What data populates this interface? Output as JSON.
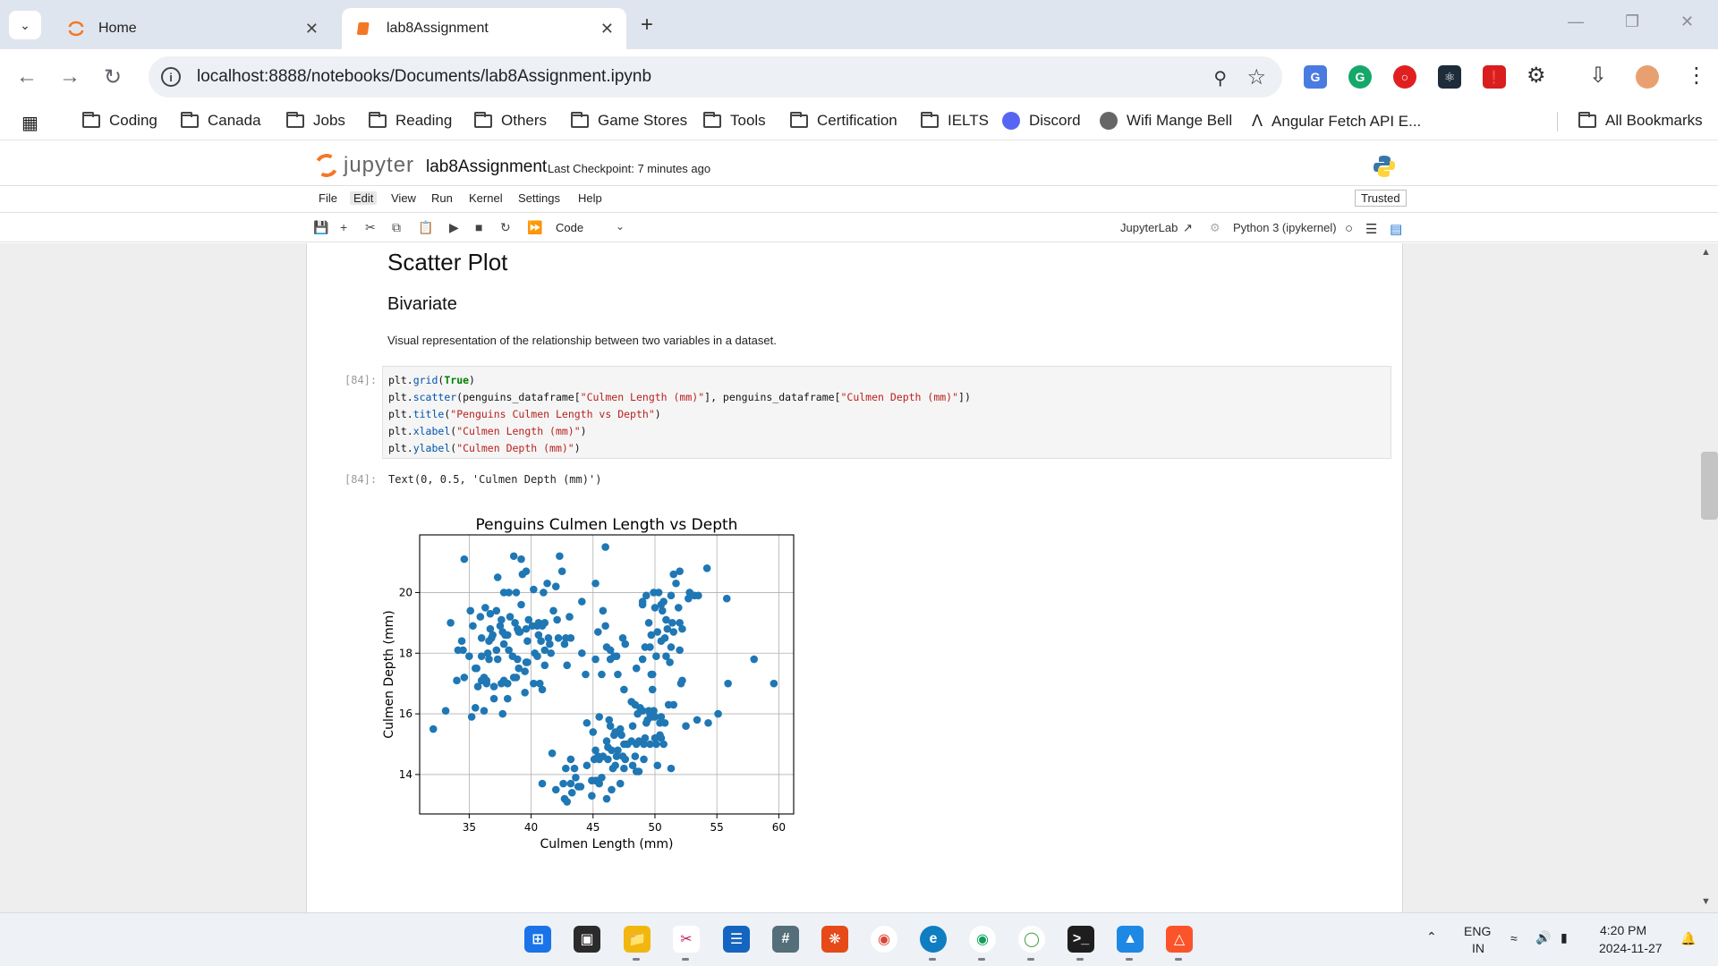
{
  "browser": {
    "tabs": [
      {
        "title": "Home",
        "active": false
      },
      {
        "title": "lab8Assignment",
        "active": true
      }
    ],
    "url": "localhost:8888/notebooks/Documents/lab8Assignment.ipynb",
    "bookmarks": [
      "Coding",
      "Canada",
      "Jobs",
      "Reading",
      "Others",
      "Game Stores",
      "Tools",
      "Certification",
      "IELTS",
      "Discord",
      "Wifi Mange Bell",
      "Angular Fetch API E..."
    ],
    "all_bookmarks": "All Bookmarks",
    "colors": {
      "tab_strip": "#dfe5ee",
      "omnibox": "#edf0f4"
    }
  },
  "jupyter": {
    "logo_text": "jupyter",
    "notebook_name": "lab8Assignment",
    "checkpoint": "Last Checkpoint: 7 minutes ago",
    "menu": [
      "File",
      "Edit",
      "View",
      "Run",
      "Kernel",
      "Settings",
      "Help"
    ],
    "trusted": "Trusted",
    "cell_type": "Code",
    "jupyterlab_link": "JupyterLab",
    "kernel": "Python 3 (ipykernel)",
    "accent": "#f37726"
  },
  "notebook": {
    "heading": "Scatter Plot",
    "subheading": "Bivariate",
    "paragraph": "Visual representation of the relationship between two variables in a dataset.",
    "input_prompt": "[84]:",
    "output_prompt": "[84]:",
    "output_text": "Text(0, 0.5, 'Culmen Depth (mm)')",
    "code": {
      "l1_a": "plt.",
      "l1_fn": "grid",
      "l1_b": "(",
      "l1_kw": "True",
      "l1_c": ")",
      "l2_a": "plt.",
      "l2_fn": "scatter",
      "l2_b": "(penguins_dataframe[",
      "l2_s1": "\"Culmen Length (mm)\"",
      "l2_c": "], penguins_dataframe[",
      "l2_s2": "\"Culmen Depth (mm)\"",
      "l2_d": "])",
      "l3_a": "plt.",
      "l3_fn": "title",
      "l3_b": "(",
      "l3_s": "\"Penguins Culmen Length vs Depth\"",
      "l3_c": ")",
      "l4_a": "plt.",
      "l4_fn": "xlabel",
      "l4_b": "(",
      "l4_s": "\"Culmen Length (mm)\"",
      "l4_c": ")",
      "l5_a": "plt.",
      "l5_fn": "ylabel",
      "l5_b": "(",
      "l5_s": "\"Culmen Depth (mm)\"",
      "l5_c": ")"
    }
  },
  "chart_data": {
    "type": "scatter",
    "title": "Penguins Culmen Length vs Depth",
    "xlabel": "Culmen Length (mm)",
    "ylabel": "Culmen Depth (mm)",
    "xlim": [
      31,
      61.2
    ],
    "ylim": [
      12.7,
      21.9
    ],
    "xticks": [
      35,
      40,
      45,
      50,
      55,
      60
    ],
    "yticks": [
      14,
      16,
      18,
      20
    ],
    "grid": true,
    "color": "#1f77b4",
    "series": [
      {
        "points": [
          [
            32.1,
            15.5
          ],
          [
            33.1,
            16.1
          ],
          [
            33.5,
            19.0
          ],
          [
            34.0,
            17.1
          ],
          [
            34.1,
            18.1
          ],
          [
            34.4,
            18.4
          ],
          [
            34.5,
            18.1
          ],
          [
            34.6,
            21.1
          ],
          [
            34.6,
            17.2
          ],
          [
            35.0,
            17.9
          ],
          [
            35.1,
            19.4
          ],
          [
            35.2,
            15.9
          ],
          [
            35.3,
            18.9
          ],
          [
            35.5,
            16.2
          ],
          [
            35.5,
            17.5
          ],
          [
            35.6,
            17.5
          ],
          [
            35.7,
            16.9
          ],
          [
            35.9,
            19.2
          ],
          [
            36.0,
            17.9
          ],
          [
            36.0,
            18.5
          ],
          [
            36.0,
            17.1
          ],
          [
            36.2,
            16.1
          ],
          [
            36.2,
            17.2
          ],
          [
            36.3,
            19.5
          ],
          [
            36.4,
            17.0
          ],
          [
            36.4,
            17.1
          ],
          [
            36.5,
            18.0
          ],
          [
            36.6,
            17.8
          ],
          [
            36.6,
            18.4
          ],
          [
            36.7,
            18.8
          ],
          [
            36.7,
            19.3
          ],
          [
            36.8,
            18.5
          ],
          [
            36.9,
            18.6
          ],
          [
            37.0,
            16.9
          ],
          [
            37.0,
            16.5
          ],
          [
            37.2,
            18.1
          ],
          [
            37.2,
            19.4
          ],
          [
            37.3,
            17.8
          ],
          [
            37.3,
            20.5
          ],
          [
            37.5,
            18.9
          ],
          [
            37.6,
            19.1
          ],
          [
            37.6,
            17.0
          ],
          [
            37.7,
            18.7
          ],
          [
            37.7,
            16.0
          ],
          [
            37.8,
            17.1
          ],
          [
            37.8,
            18.3
          ],
          [
            37.8,
            20.0
          ],
          [
            37.9,
            18.6
          ],
          [
            38.1,
            18.6
          ],
          [
            38.1,
            17.0
          ],
          [
            38.1,
            16.5
          ],
          [
            38.2,
            18.1
          ],
          [
            38.2,
            20.0
          ],
          [
            38.3,
            19.2
          ],
          [
            38.5,
            17.9
          ],
          [
            38.6,
            21.2
          ],
          [
            38.6,
            17.2
          ],
          [
            38.7,
            19.0
          ],
          [
            38.8,
            17.2
          ],
          [
            38.8,
            20.0
          ],
          [
            38.9,
            17.8
          ],
          [
            38.9,
            18.8
          ],
          [
            39.0,
            17.5
          ],
          [
            39.0,
            18.7
          ],
          [
            39.1,
            18.7
          ],
          [
            39.2,
            19.6
          ],
          [
            39.2,
            21.1
          ],
          [
            39.3,
            20.6
          ],
          [
            39.5,
            17.4
          ],
          [
            39.5,
            16.7
          ],
          [
            39.6,
            17.7
          ],
          [
            39.6,
            18.8
          ],
          [
            39.6,
            20.7
          ],
          [
            39.7,
            17.7
          ],
          [
            39.7,
            18.4
          ],
          [
            39.8,
            19.1
          ],
          [
            40.1,
            18.9
          ],
          [
            40.2,
            17.0
          ],
          [
            40.2,
            20.1
          ],
          [
            40.3,
            18.0
          ],
          [
            40.5,
            17.9
          ],
          [
            40.5,
            18.9
          ],
          [
            40.6,
            18.6
          ],
          [
            40.6,
            19.0
          ],
          [
            40.7,
            17.0
          ],
          [
            40.8,
            18.4
          ],
          [
            40.9,
            16.8
          ],
          [
            40.9,
            18.9
          ],
          [
            41.0,
            20.0
          ],
          [
            41.1,
            17.6
          ],
          [
            41.1,
            19.0
          ],
          [
            41.1,
            18.1
          ],
          [
            41.3,
            20.3
          ],
          [
            41.4,
            18.5
          ],
          [
            41.5,
            18.3
          ],
          [
            41.6,
            18.0
          ],
          [
            41.8,
            19.4
          ],
          [
            42.0,
            20.2
          ],
          [
            42.1,
            19.1
          ],
          [
            42.2,
            18.5
          ],
          [
            42.3,
            21.2
          ],
          [
            42.5,
            20.7
          ],
          [
            42.7,
            18.3
          ],
          [
            42.8,
            18.5
          ],
          [
            42.9,
            17.6
          ],
          [
            43.1,
            19.2
          ],
          [
            43.2,
            18.5
          ],
          [
            44.1,
            19.7
          ],
          [
            44.1,
            18.0
          ],
          [
            45.2,
            17.8
          ],
          [
            45.5,
            15.9
          ],
          [
            45.7,
            17.3
          ],
          [
            46.1,
            18.2
          ],
          [
            45.4,
            18.7
          ],
          [
            46.0,
            21.5
          ],
          [
            45.2,
            20.3
          ],
          [
            45.8,
            19.4
          ],
          [
            46.4,
            18.1
          ],
          [
            46.9,
            17.9
          ],
          [
            47.4,
            18.5
          ],
          [
            40.9,
            13.7
          ],
          [
            41.7,
            14.7
          ],
          [
            42.0,
            13.5
          ],
          [
            42.6,
            13.7
          ],
          [
            42.7,
            13.2
          ],
          [
            42.8,
            14.2
          ],
          [
            42.9,
            13.1
          ],
          [
            43.2,
            13.7
          ],
          [
            43.2,
            14.5
          ],
          [
            43.3,
            13.4
          ],
          [
            43.5,
            14.2
          ],
          [
            43.6,
            13.9
          ],
          [
            43.8,
            13.6
          ],
          [
            44.0,
            13.6
          ],
          [
            44.4,
            17.3
          ],
          [
            44.5,
            14.3
          ],
          [
            44.5,
            15.7
          ],
          [
            44.9,
            13.8
          ],
          [
            44.9,
            13.3
          ],
          [
            45.0,
            15.4
          ],
          [
            45.1,
            14.5
          ],
          [
            45.2,
            13.8
          ],
          [
            45.2,
            14.8
          ],
          [
            45.3,
            13.8
          ],
          [
            45.4,
            14.6
          ],
          [
            45.5,
            13.7
          ],
          [
            45.5,
            14.5
          ],
          [
            45.7,
            13.9
          ],
          [
            45.8,
            14.6
          ],
          [
            46.1,
            13.2
          ],
          [
            46.1,
            15.1
          ],
          [
            46.2,
            14.5
          ],
          [
            46.2,
            14.9
          ],
          [
            46.3,
            15.8
          ],
          [
            46.4,
            15.6
          ],
          [
            46.5,
            13.5
          ],
          [
            46.5,
            14.8
          ],
          [
            46.6,
            14.2
          ],
          [
            46.7,
            15.3
          ],
          [
            46.8,
            14.3
          ],
          [
            46.8,
            15.4
          ],
          [
            46.9,
            14.6
          ],
          [
            47.0,
            14.8
          ],
          [
            47.2,
            13.7
          ],
          [
            47.2,
            15.5
          ],
          [
            47.3,
            15.3
          ],
          [
            47.4,
            14.6
          ],
          [
            47.5,
            14.2
          ],
          [
            47.5,
            15.0
          ],
          [
            47.6,
            14.5
          ],
          [
            47.7,
            15.0
          ],
          [
            47.8,
            15.0
          ],
          [
            48.1,
            15.1
          ],
          [
            48.2,
            14.3
          ],
          [
            48.2,
            15.6
          ],
          [
            48.4,
            14.6
          ],
          [
            48.4,
            16.3
          ],
          [
            48.5,
            14.1
          ],
          [
            48.5,
            15.0
          ],
          [
            48.6,
            16.0
          ],
          [
            48.7,
            14.1
          ],
          [
            48.7,
            15.1
          ],
          [
            48.8,
            16.2
          ],
          [
            49.0,
            16.1
          ],
          [
            49.1,
            14.5
          ],
          [
            49.1,
            15.0
          ],
          [
            49.2,
            15.2
          ],
          [
            49.3,
            15.7
          ],
          [
            49.4,
            15.8
          ],
          [
            49.5,
            16.1
          ],
          [
            49.6,
            15.0
          ],
          [
            49.6,
            16.0
          ],
          [
            49.8,
            15.9
          ],
          [
            49.8,
            16.8
          ],
          [
            49.9,
            16.1
          ],
          [
            50.0,
            15.2
          ],
          [
            50.0,
            15.9
          ],
          [
            50.1,
            15.0
          ],
          [
            50.2,
            14.3
          ],
          [
            50.4,
            15.3
          ],
          [
            50.4,
            15.7
          ],
          [
            50.5,
            15.2
          ],
          [
            50.5,
            15.9
          ],
          [
            50.7,
            15.0
          ],
          [
            50.8,
            15.7
          ],
          [
            51.1,
            16.3
          ],
          [
            51.3,
            14.2
          ],
          [
            51.5,
            16.3
          ],
          [
            52.1,
            17.0
          ],
          [
            52.2,
            17.1
          ],
          [
            52.5,
            15.6
          ],
          [
            53.4,
            15.8
          ],
          [
            54.3,
            15.7
          ],
          [
            55.1,
            16.0
          ],
          [
            55.9,
            17.0
          ],
          [
            59.6,
            17.0
          ],
          [
            46.0,
            18.9
          ],
          [
            46.4,
            17.8
          ],
          [
            46.7,
            17.9
          ],
          [
            47.0,
            17.3
          ],
          [
            47.5,
            16.8
          ],
          [
            47.6,
            18.3
          ],
          [
            48.1,
            16.4
          ],
          [
            48.5,
            17.5
          ],
          [
            49.0,
            17.8
          ],
          [
            49.2,
            18.2
          ],
          [
            49.3,
            19.9
          ],
          [
            49.5,
            19.0
          ],
          [
            49.6,
            18.2
          ],
          [
            49.7,
            18.6
          ],
          [
            49.8,
            17.3
          ],
          [
            50.0,
            19.5
          ],
          [
            50.1,
            17.9
          ],
          [
            50.2,
            18.7
          ],
          [
            50.3,
            20.0
          ],
          [
            50.5,
            18.4
          ],
          [
            50.5,
            19.6
          ],
          [
            50.6,
            19.4
          ],
          [
            50.7,
            19.7
          ],
          [
            50.8,
            18.5
          ],
          [
            50.9,
            17.9
          ],
          [
            51.0,
            18.8
          ],
          [
            51.3,
            19.9
          ],
          [
            51.3,
            18.2
          ],
          [
            51.4,
            19.0
          ],
          [
            51.5,
            18.7
          ],
          [
            51.7,
            20.3
          ],
          [
            51.9,
            19.5
          ],
          [
            52.0,
            18.1
          ],
          [
            52.0,
            19.0
          ],
          [
            52.2,
            18.8
          ],
          [
            52.7,
            19.8
          ],
          [
            52.8,
            20.0
          ],
          [
            53.2,
            19.9
          ],
          [
            53.5,
            19.9
          ],
          [
            54.2,
            20.8
          ],
          [
            55.8,
            19.8
          ],
          [
            58.0,
            17.8
          ],
          [
            49.9,
            20.0
          ],
          [
            51.2,
            17.7
          ],
          [
            49.7,
            17.3
          ],
          [
            51.5,
            20.6
          ],
          [
            50.9,
            19.1
          ],
          [
            49.0,
            19.6
          ],
          [
            49.0,
            19.7
          ],
          [
            52.0,
            20.7
          ]
        ]
      }
    ]
  },
  "taskbar": {
    "lang": "ENG",
    "region": "IN",
    "time": "4:20 PM",
    "date": "2024-11-27"
  }
}
